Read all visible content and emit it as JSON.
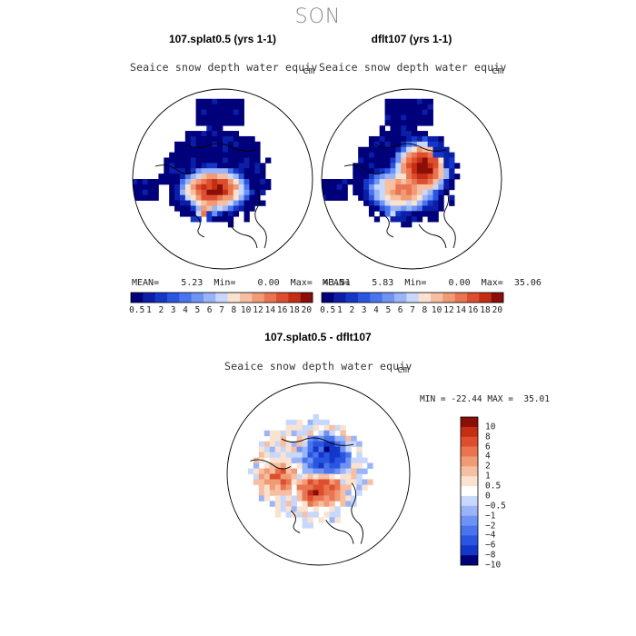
{
  "season": "SON",
  "panels": [
    {
      "title": "107.splat0.5 (yrs 1-1)",
      "variable": "Seaice snow depth water equiv",
      "units": "cm",
      "stats": {
        "mean_label": "MEAN=",
        "mean": "5.23",
        "min_label": "Min=",
        "min": "0.00",
        "max_label": "Max=",
        "max": "43.51"
      }
    },
    {
      "title": "dflt107 (yrs 1-1)",
      "variable": "Seaice snow depth water equiv",
      "units": "cm",
      "stats": {
        "mean_label": "MEAN=",
        "mean": "5.83",
        "min_label": "Min=",
        "min": "0.00",
        "max_label": "Max=",
        "max": "35.06"
      }
    }
  ],
  "diff_panel": {
    "title": "107.splat0.5 - dflt107",
    "variable": "Seaice snow depth water equiv",
    "units": "cm",
    "minmax": "MIN = -22.44 MAX =  35.01"
  },
  "chart_data": [
    {
      "type": "heatmap",
      "projection": "north polar stereographic",
      "title": "107.splat0.5 (yrs 1-1)",
      "variable": "Seaice snow depth water equiv",
      "units": "cm",
      "mean": 5.23,
      "min": 0.0,
      "max": 43.51,
      "colorbar_levels": [
        "0.5",
        "1",
        "2",
        "3",
        "4",
        "5",
        "6",
        "7",
        "8",
        "10",
        "12",
        "14",
        "16",
        "18",
        "20"
      ]
    },
    {
      "type": "heatmap",
      "projection": "north polar stereographic",
      "title": "dflt107 (yrs 1-1)",
      "variable": "Seaice snow depth water equiv",
      "units": "cm",
      "mean": 5.83,
      "min": 0.0,
      "max": 35.06,
      "colorbar_levels": [
        "0.5",
        "1",
        "2",
        "3",
        "4",
        "5",
        "6",
        "7",
        "8",
        "10",
        "12",
        "14",
        "16",
        "18",
        "20"
      ]
    },
    {
      "type": "heatmap",
      "projection": "north polar stereographic",
      "title": "107.splat0.5 - dflt107",
      "variable": "Seaice snow depth water equiv",
      "units": "cm",
      "min": -22.44,
      "max": 35.01,
      "colorbar_levels": [
        "10",
        "8",
        "6",
        "4",
        "2",
        "1",
        "0.5",
        "0",
        "−0.5",
        "−1",
        "−2",
        "−4",
        "−6",
        "−8",
        "−10"
      ]
    }
  ],
  "colors": {
    "seq": [
      "#00007a",
      "#0a1ea8",
      "#1437c8",
      "#2a55e0",
      "#4a74ee",
      "#6e93f4",
      "#9ab4f8",
      "#c8d8fc",
      "#fae2d0",
      "#f6bfa2",
      "#f19a76",
      "#ea7450",
      "#dd4e2e",
      "#c42e14",
      "#8c0e08"
    ],
    "div": [
      "#8c0e08",
      "#c42e14",
      "#dd4e2e",
      "#ea7450",
      "#f19a76",
      "#f6bfa2",
      "#fae2d0",
      "#ffffff",
      "#c8d8fc",
      "#9ab4f8",
      "#6e93f4",
      "#4a74ee",
      "#2a55e0",
      "#1437c8",
      "#00007a"
    ]
  }
}
